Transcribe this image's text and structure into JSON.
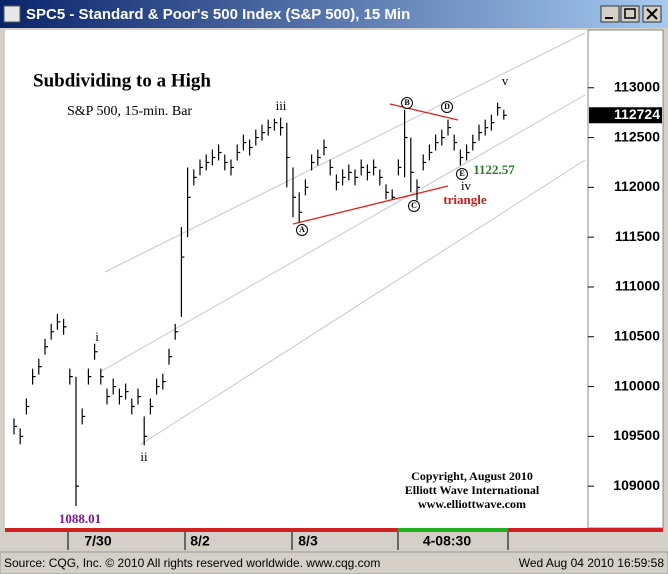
{
  "window_title": "SPC5 - Standard & Poor's 500 Index (S&P 500), 15 Min",
  "status": {
    "source": "Source: CQG, Inc. © 2010 All rights reserved worldwide. www.cqg.com",
    "timestamp": "Wed Aug 04 2010 16:59:58"
  },
  "chart_data": {
    "type": "ohlc",
    "title": "Subdividing to a High",
    "subtitle": "S&P 500, 15-min. Bar",
    "time_labels": [
      "7/30",
      "8/2",
      "8/3",
      "4-08:30"
    ],
    "annotations": [
      "i",
      "ii",
      "iii",
      "iv",
      "v",
      "triangle",
      "1122.57",
      "1088.01",
      "A",
      "B",
      "C",
      "D",
      "E"
    ],
    "credits": [
      "Copyright, August 2010",
      "Elliott Wave International",
      "www.elliottwave.com"
    ],
    "color": "#000000",
    "ylim": [
      108580,
      113580
    ],
    "yticks": [
      109000,
      109500,
      110000,
      110500,
      111000,
      111500,
      112000,
      112500,
      113000
    ],
    "high": [
      109680,
      109580,
      109880,
      110180,
      110280,
      110480,
      110630,
      110730,
      110680,
      110180,
      110100,
      109780,
      110180,
      110430,
      110180,
      109980,
      110080,
      109980,
      110030,
      109880,
      109980,
      109700,
      109880,
      110080,
      110130,
      110380,
      110630,
      111600,
      112200,
      112180,
      112280,
      112330,
      112380,
      112430,
      112330,
      112280,
      112430,
      112530,
      112480,
      112580,
      112630,
      112680,
      112690,
      112700,
      112650,
      112200,
      111950,
      112080,
      112330,
      112380,
      112480,
      112280,
      112130,
      112180,
      112230,
      112180,
      112280,
      112230,
      112280,
      112180,
      112030,
      111980,
      112280,
      112780,
      112500,
      112080,
      112330,
      112430,
      112530,
      112580,
      112680,
      112530,
      112380,
      112430,
      112530,
      112630,
      112680,
      112730,
      112850,
      112780
    ],
    "low": [
      109520,
      109420,
      109720,
      110020,
      110120,
      110320,
      110470,
      110570,
      110520,
      110020,
      108801,
      109620,
      110020,
      110270,
      110020,
      109820,
      109920,
      109820,
      109870,
      109720,
      109820,
      109410,
      109720,
      109920,
      109970,
      110220,
      110470,
      110700,
      111500,
      112020,
      112120,
      112170,
      112220,
      112270,
      112170,
      112120,
      112270,
      112370,
      112320,
      112420,
      112470,
      112520,
      112570,
      112520,
      112000,
      111700,
      111650,
      111920,
      112170,
      112220,
      112320,
      112120,
      111970,
      112020,
      112070,
      112020,
      112120,
      112070,
      112120,
      112020,
      111880,
      111880,
      112120,
      112100,
      111950,
      111870,
      112170,
      112270,
      112370,
      112420,
      112520,
      112370,
      112220,
      112270,
      112370,
      112470,
      112520,
      112570,
      112720,
      112680
    ],
    "close": [
      109600,
      109500,
      109800,
      110100,
      110200,
      110400,
      110550,
      110650,
      110600,
      110100,
      109000,
      109700,
      110100,
      110350,
      110100,
      109900,
      110000,
      109900,
      109950,
      109800,
      109900,
      109500,
      109800,
      110000,
      110050,
      110300,
      110550,
      111300,
      111900,
      112100,
      112200,
      112250,
      112300,
      112350,
      112250,
      112200,
      112350,
      112450,
      112400,
      112500,
      112550,
      112600,
      112650,
      112600,
      112300,
      111900,
      111750,
      112000,
      112250,
      112300,
      112400,
      112200,
      112050,
      112100,
      112150,
      112100,
      112200,
      112150,
      112200,
      112100,
      111950,
      111900,
      112200,
      112500,
      112150,
      112000,
      112250,
      112350,
      112450,
      112500,
      112600,
      112450,
      112300,
      112350,
      112450,
      112550,
      112600,
      112650,
      112800,
      112724
    ]
  }
}
